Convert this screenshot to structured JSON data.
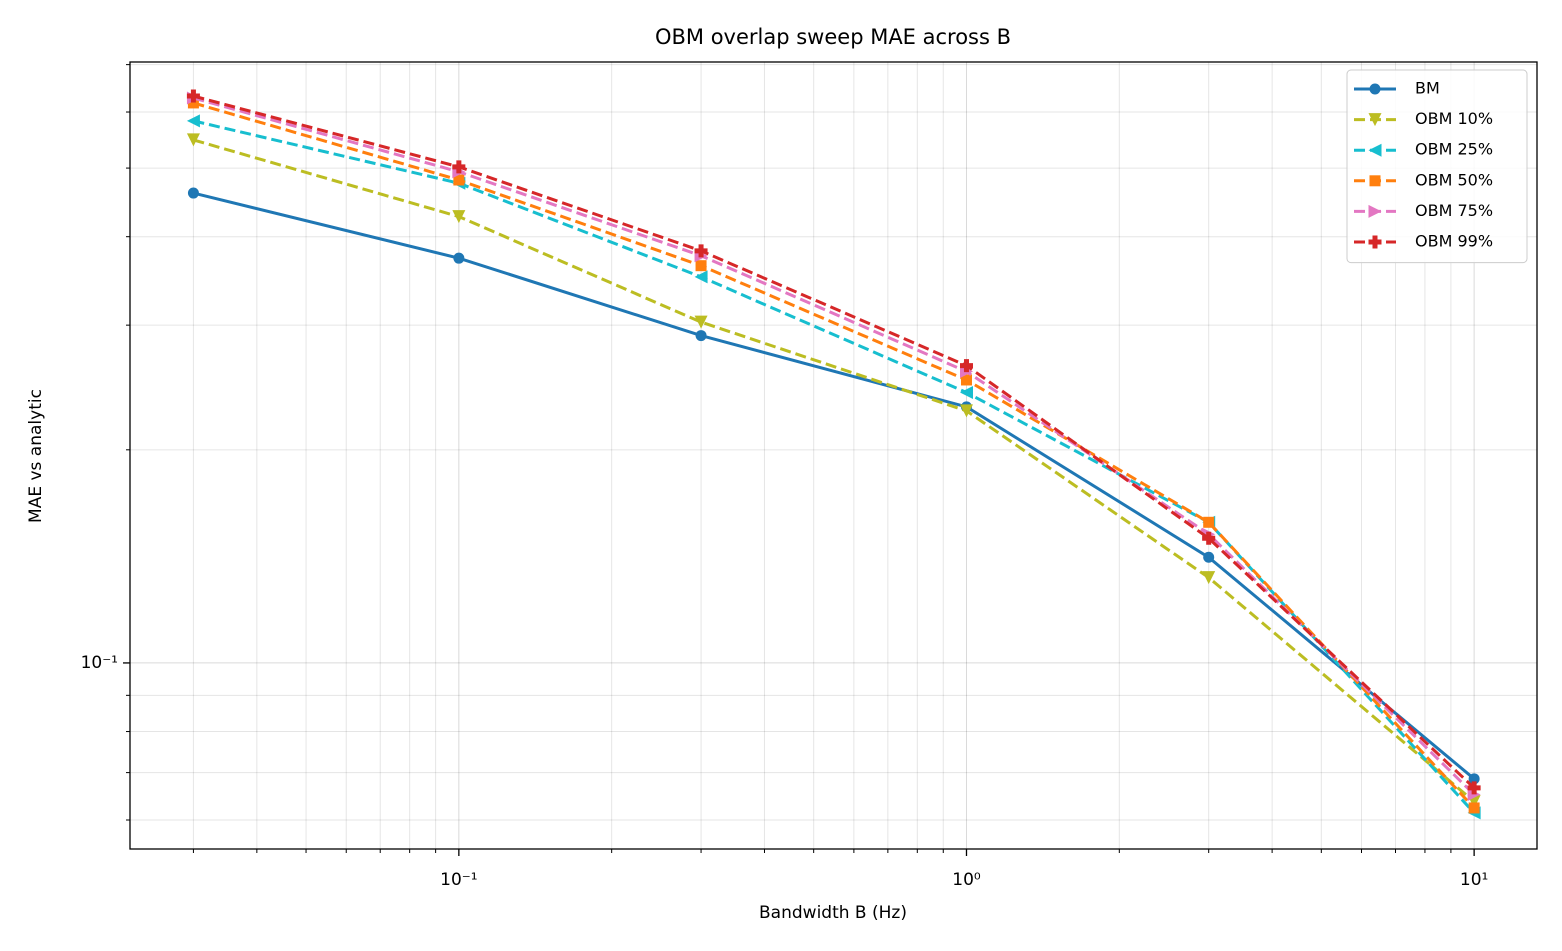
{
  "chart_data": {
    "type": "line",
    "title": "OBM overlap sweep MAE across B",
    "xlabel": "Bandwidth B (Hz)",
    "ylabel": "MAE vs analytic",
    "xscale": "log",
    "yscale": "log",
    "grid": true,
    "legend_loc": "upper right",
    "x": [
      0.03,
      0.1,
      0.3,
      1,
      3,
      10
    ],
    "xlim": [
      0.0225,
      13.3
    ],
    "ylim": [
      0.0546,
      0.706
    ],
    "xticks": [
      {
        "value": 0.1,
        "label": "10⁻¹"
      },
      {
        "value": 1,
        "label": "10⁰"
      },
      {
        "value": 10,
        "label": "10¹"
      }
    ],
    "xminorticks": [
      0.03,
      0.04,
      0.05,
      0.06,
      0.07,
      0.08,
      0.09,
      0.2,
      0.3,
      0.4,
      0.5,
      0.6,
      0.7,
      0.8,
      0.9,
      2,
      3,
      4,
      5,
      6,
      7,
      8,
      9
    ],
    "yticks": [
      {
        "value": 0.1,
        "label": "10⁻¹"
      }
    ],
    "yminorticks": [
      0.06,
      0.07,
      0.08,
      0.09,
      0.2,
      0.3,
      0.4,
      0.5,
      0.6,
      0.7
    ],
    "series": [
      {
        "name": "BM",
        "color": "#1f77b4",
        "marker": "circle",
        "linestyle": "solid",
        "values": [
          0.461,
          0.373,
          0.29,
          0.23,
          0.141,
          0.0686
        ]
      },
      {
        "name": "OBM 10%",
        "color": "#bcbd22",
        "marker": "triangle-down",
        "linestyle": "dashed",
        "values": [
          0.548,
          0.427,
          0.303,
          0.227,
          0.132,
          0.0637
        ]
      },
      {
        "name": "OBM 25%",
        "color": "#17becf",
        "marker": "triangle-left",
        "linestyle": "dashed",
        "values": [
          0.583,
          0.476,
          0.351,
          0.241,
          0.158,
          0.0614
        ]
      },
      {
        "name": "OBM 50%",
        "color": "#ff7f0e",
        "marker": "square",
        "linestyle": "dashed",
        "values": [
          0.618,
          0.481,
          0.364,
          0.251,
          0.158,
          0.0624
        ]
      },
      {
        "name": "OBM 75%",
        "color": "#e377c2",
        "marker": "triangle-right",
        "linestyle": "dashed",
        "values": [
          0.628,
          0.494,
          0.376,
          0.258,
          0.152,
          0.0652
        ]
      },
      {
        "name": "OBM 99%",
        "color": "#d62728",
        "marker": "plus",
        "linestyle": "dashed",
        "values": [
          0.632,
          0.502,
          0.382,
          0.263,
          0.15,
          0.0666
        ]
      }
    ]
  }
}
